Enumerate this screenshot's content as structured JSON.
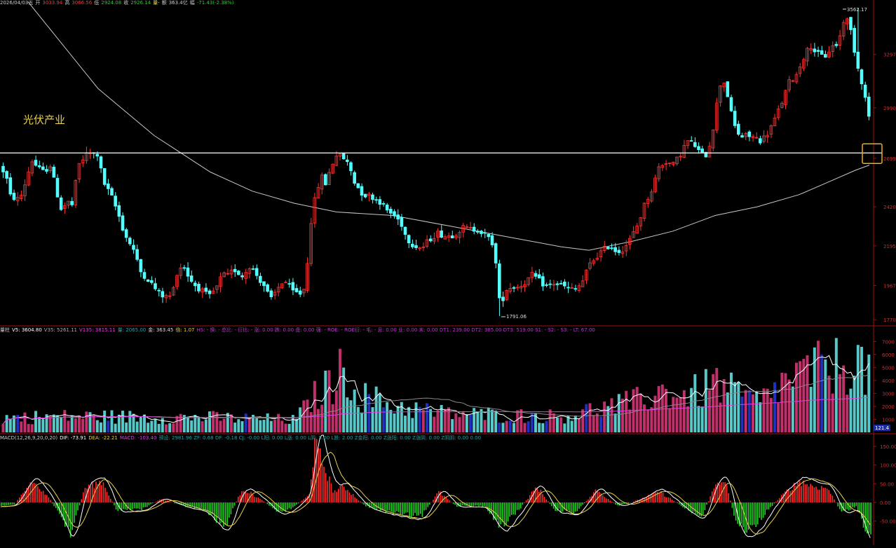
{
  "sector_label": "光伏产业",
  "header_main": {
    "date": "2026/04/03五",
    "open_label": "开",
    "open": "3033.94",
    "high_label": "高",
    "high": "3066.56",
    "low_label": "低",
    "low": "2924.08",
    "close_label": "收",
    "close": "2926.14",
    "vol_label": "量-",
    "amount_label": "额",
    "amount": "363.4亿",
    "change_label": "幅",
    "change": "-71.43(-2.38%)"
  },
  "header_vol": {
    "name": "量柱",
    "v5": "V5: 3604.80",
    "v35": "V35: 5261.11",
    "v135": "V135: 3815.11",
    "liang": "量: 2065.00",
    "jin": "金: 363.45",
    "bei": "倍: 1.07",
    "rest": "HS: -  换: -  总比: -  衍比: -  涨: 0.00  跌: 0.00  盘: 0.00  强: -  ROE: -  ROE衍: -  毛: -  息: 0.00  业: 0.00  末: 0.00  DT1: 239.00  DT2: 385.00  DT3: 519.00  S1: -  S2: -  S3: -  LT: 67.00"
  },
  "header_macd": {
    "name": "MACD(12,26,9,20,0,20)",
    "dif": "DIF: -73.91",
    "dea": "DEA: -22.21",
    "macd": "MACD: -103.40",
    "rest": "预设: 2981.96  ZF: 0.68  DF: -0.18  CJ: -0.00  L阳: 0.00  L涨: 0.00  L阴: 5.00  L跌: 2.00  Z金阳: 0.00  Z涨阳: 0.00  Z涨阴: 0.00  Z阴阴: 0.00  0.00"
  },
  "price_axis_ticks": [
    "3297",
    "2990",
    "2699",
    "2420",
    "2195",
    "1967",
    "1770"
  ],
  "volume_axis_ticks": [
    "7000",
    "6000",
    "5000",
    "4000",
    "3000",
    "2000",
    "1000"
  ],
  "macd_axis_ticks": [
    "150.00",
    "100.00",
    "50.00",
    "0.00",
    "-50.00"
  ],
  "annotations": {
    "high": "3562.17",
    "low": "1791.06",
    "volume_current": "121.4"
  },
  "colors": {
    "up": "#ff3232",
    "down": "#54ffff",
    "macd_pos": "#ff2a2a",
    "macd_neg": "#22d022",
    "dif": "#ffffff",
    "dea": "#e8d24a",
    "ma": "#c8c8c8",
    "vol_ma_pink": "#e040e0",
    "axis": "#a01010",
    "tick_text": "#c83232",
    "hline": "#ffffff",
    "box": "#e8b020"
  },
  "chart_data": {
    "type": "candlestick",
    "candles_count": 240,
    "keypoints": [
      [
        0,
        2650
      ],
      [
        8,
        2610
      ],
      [
        15,
        2480
      ],
      [
        28,
        2460
      ],
      [
        38,
        2580
      ],
      [
        45,
        2690
      ],
      [
        55,
        2640
      ],
      [
        62,
        2620
      ],
      [
        72,
        2660
      ],
      [
        80,
        2520
      ],
      [
        88,
        2400
      ],
      [
        96,
        2450
      ],
      [
        103,
        2430
      ],
      [
        112,
        2660
      ],
      [
        125,
        2730
      ],
      [
        140,
        2720
      ],
      [
        145,
        2610
      ],
      [
        150,
        2540
      ],
      [
        158,
        2490
      ],
      [
        168,
        2390
      ],
      [
        178,
        2260
      ],
      [
        190,
        2180
      ],
      [
        200,
        2050
      ],
      [
        212,
        2000
      ],
      [
        225,
        1930
      ],
      [
        235,
        1900
      ],
      [
        246,
        1910
      ],
      [
        250,
        2020
      ],
      [
        256,
        2070
      ],
      [
        262,
        2080
      ],
      [
        270,
        2010
      ],
      [
        278,
        1970
      ],
      [
        284,
        1950
      ],
      [
        290,
        1930
      ],
      [
        298,
        1900
      ],
      [
        310,
        1960
      ],
      [
        318,
        2040
      ],
      [
        322,
        2010
      ],
      [
        334,
        2060
      ],
      [
        346,
        2020
      ],
      [
        356,
        2080
      ],
      [
        362,
        2050
      ],
      [
        378,
        1960
      ],
      [
        386,
        1880
      ],
      [
        396,
        1950
      ],
      [
        405,
        2000
      ],
      [
        418,
        1930
      ],
      [
        428,
        1920
      ],
      [
        436,
        1960
      ],
      [
        442,
        2300
      ],
      [
        450,
        2480
      ],
      [
        458,
        2600
      ],
      [
        465,
        2550
      ],
      [
        472,
        2650
      ],
      [
        480,
        2720
      ],
      [
        490,
        2700
      ],
      [
        498,
        2660
      ],
      [
        506,
        2560
      ],
      [
        518,
        2490
      ],
      [
        530,
        2480
      ],
      [
        542,
        2450
      ],
      [
        552,
        2400
      ],
      [
        562,
        2370
      ],
      [
        572,
        2330
      ],
      [
        580,
        2240
      ],
      [
        590,
        2200
      ],
      [
        602,
        2180
      ],
      [
        612,
        2230
      ],
      [
        624,
        2270
      ],
      [
        636,
        2250
      ],
      [
        648,
        2260
      ],
      [
        660,
        2300
      ],
      [
        672,
        2290
      ],
      [
        682,
        2290
      ],
      [
        694,
        2250
      ],
      [
        705,
        2200
      ],
      [
        710,
        1960
      ],
      [
        714,
        1830
      ],
      [
        720,
        1940
      ],
      [
        730,
        1960
      ],
      [
        740,
        1960
      ],
      [
        750,
        1990
      ],
      [
        760,
        2030
      ],
      [
        770,
        1990
      ],
      [
        780,
        1960
      ],
      [
        790,
        1980
      ],
      [
        800,
        1970
      ],
      [
        810,
        1950
      ],
      [
        820,
        1940
      ],
      [
        830,
        1980
      ],
      [
        840,
        2080
      ],
      [
        850,
        2130
      ],
      [
        860,
        2170
      ],
      [
        870,
        2200
      ],
      [
        880,
        2160
      ],
      [
        890,
        2180
      ],
      [
        900,
        2240
      ],
      [
        910,
        2320
      ],
      [
        920,
        2440
      ],
      [
        930,
        2520
      ],
      [
        940,
        2650
      ],
      [
        950,
        2680
      ],
      [
        960,
        2660
      ],
      [
        970,
        2720
      ],
      [
        980,
        2800
      ],
      [
        990,
        2780
      ],
      [
        1000,
        2720
      ],
      [
        1008,
        2720
      ],
      [
        1015,
        2820
      ],
      [
        1022,
        3000
      ],
      [
        1030,
        3180
      ],
      [
        1038,
        3060
      ],
      [
        1046,
        2900
      ],
      [
        1056,
        2820
      ],
      [
        1066,
        2830
      ],
      [
        1076,
        2820
      ],
      [
        1086,
        2800
      ],
      [
        1096,
        2850
      ],
      [
        1106,
        2930
      ],
      [
        1116,
        3030
      ],
      [
        1126,
        3140
      ],
      [
        1136,
        3180
      ],
      [
        1146,
        3280
      ],
      [
        1156,
        3350
      ],
      [
        1166,
        3300
      ],
      [
        1176,
        3280
      ],
      [
        1186,
        3340
      ],
      [
        1196,
        3360
      ],
      [
        1202,
        3480
      ],
      [
        1206,
        3520
      ],
      [
        1214,
        3430
      ],
      [
        1222,
        3250
      ],
      [
        1230,
        3130
      ],
      [
        1240,
        2930
      ]
    ],
    "ma250_keypoints": [
      [
        40,
        3600
      ],
      [
        80,
        3400
      ],
      [
        140,
        3100
      ],
      [
        220,
        2830
      ],
      [
        300,
        2620
      ],
      [
        360,
        2510
      ],
      [
        420,
        2440
      ],
      [
        480,
        2390
      ],
      [
        560,
        2370
      ],
      [
        640,
        2310
      ],
      [
        720,
        2250
      ],
      [
        800,
        2190
      ],
      [
        840,
        2170
      ],
      [
        900,
        2220
      ],
      [
        960,
        2280
      ],
      [
        1020,
        2370
      ],
      [
        1080,
        2420
      ],
      [
        1140,
        2490
      ],
      [
        1180,
        2560
      ],
      [
        1220,
        2630
      ],
      [
        1240,
        2660
      ]
    ],
    "price_range": [
      1700,
      3650
    ],
    "volume_range": [
      0,
      7500
    ],
    "macd_range": [
      -110,
      170
    ],
    "hline_price": 2730
  }
}
